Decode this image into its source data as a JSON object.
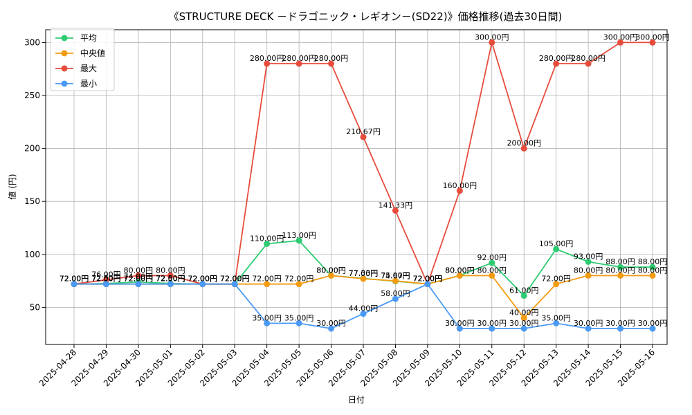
{
  "chart_data": {
    "type": "line",
    "title": "《STRUCTURE DECK －ドラゴニック・レギオン－(SD22)》価格推移(過去30日間)",
    "xlabel": "日付",
    "ylabel": "値 (円)",
    "ylim": [
      15,
      312
    ],
    "yticks": [
      50,
      100,
      150,
      200,
      250,
      300
    ],
    "grid": true,
    "legend_position": "top-left",
    "label_suffix": "円",
    "categories": [
      "2025-04-28",
      "2025-04-29",
      "2025-04-30",
      "2025-05-01",
      "2025-05-02",
      "2025-05-03",
      "2025-05-04",
      "2025-05-05",
      "2025-05-06",
      "2025-05-07",
      "2025-05-08",
      "2025-05-09",
      "2025-05-10",
      "2025-05-11",
      "2025-05-12",
      "2025-05-13",
      "2025-05-14",
      "2025-05-15",
      "2025-05-16"
    ],
    "series": [
      {
        "name": "平均",
        "color": "#2ecc71",
        "values": [
          72,
          72.5,
          74,
          72.5,
          72,
          72,
          110,
          113,
          80,
          77.33,
          74.67,
          72,
          80,
          92,
          61,
          105,
          93,
          88,
          88
        ]
      },
      {
        "name": "中央値",
        "color": "#f39c12",
        "values": [
          72,
          72,
          72,
          72,
          72,
          72,
          72,
          72,
          80,
          77,
          75,
          72,
          80,
          80,
          40,
          72,
          80,
          80,
          80
        ]
      },
      {
        "name": "最大",
        "color": "#e74c3c",
        "values": [
          72,
          76,
          80,
          80,
          72,
          72,
          280,
          280,
          280,
          210.67,
          141.33,
          72,
          160,
          300,
          200,
          280,
          280,
          300,
          300
        ]
      },
      {
        "name": "最小",
        "color": "#4a9af5",
        "values": [
          72,
          72,
          72,
          72,
          72,
          72,
          35,
          35,
          30,
          44,
          58,
          72,
          30,
          30,
          30,
          35,
          30,
          30,
          30
        ]
      }
    ]
  }
}
